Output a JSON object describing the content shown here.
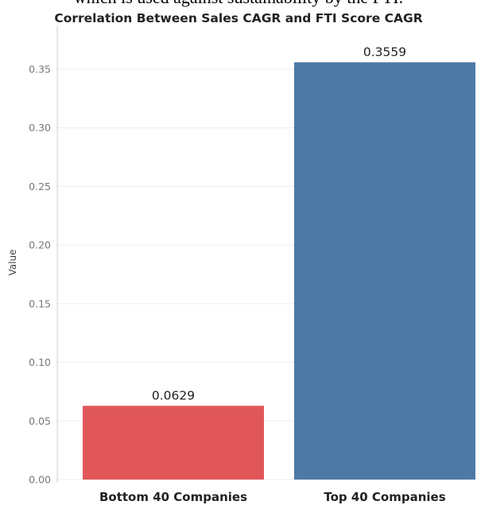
{
  "caption_fragment": "which is used against sustainability by the FTI.",
  "chart_data": {
    "type": "bar",
    "title": "Correlation Between Sales CAGR and FTI Score CAGR",
    "xlabel": "",
    "ylabel": "Value",
    "categories": [
      "Bottom 40 Companies",
      "Top 40 Companies"
    ],
    "values": [
      0.0629,
      0.3559
    ],
    "data_labels": [
      "0.0629",
      "0.3559"
    ],
    "bar_colors": [
      "#e15759",
      "#4e79a7"
    ],
    "ylim": [
      0,
      0.37
    ],
    "yticks": [
      0.0,
      0.05,
      0.1,
      0.15,
      0.2,
      0.25,
      0.3,
      0.35
    ],
    "ytick_labels": [
      "0.00",
      "0.05",
      "0.10",
      "0.15",
      "0.20",
      "0.25",
      "0.30",
      "0.35"
    ],
    "grid": true,
    "legend": false
  }
}
